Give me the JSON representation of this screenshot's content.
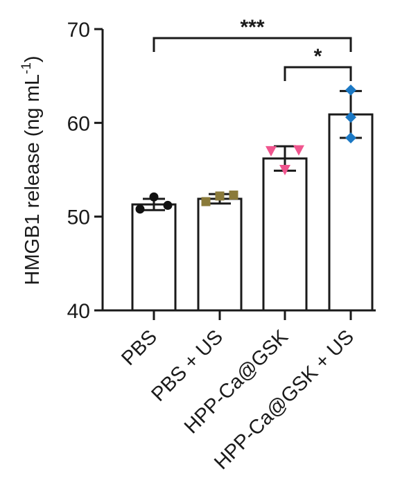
{
  "chart_data": {
    "type": "bar",
    "ylabel": "HMGB1 release (ng mL",
    "ylabel_sup": "-1",
    "ylabel_close": ")",
    "ylim": [
      40,
      70
    ],
    "yticks": [
      40,
      50,
      60,
      70
    ],
    "grid": false,
    "categories": [
      "PBS",
      "PBS + US",
      "HPP-Ca@GSK",
      "HPP-Ca@GSK + US"
    ],
    "values": [
      51.3,
      51.9,
      56.2,
      60.9
    ],
    "errors": [
      0.6,
      0.5,
      1.3,
      2.5
    ],
    "points": [
      {
        "values": [
          50.8,
          52.1,
          51.2
        ],
        "marker": "circle",
        "color": "#111111"
      },
      {
        "values": [
          51.6,
          52.2,
          52.3
        ],
        "marker": "square",
        "color": "#8a7a3a"
      },
      {
        "values": [
          57.0,
          55.0,
          57.1
        ],
        "marker": "triangle-down",
        "color": "#f0558e"
      },
      {
        "values": [
          58.4,
          60.6,
          63.5
        ],
        "marker": "diamond",
        "color": "#1b78c4"
      }
    ],
    "significance": [
      {
        "from": 0,
        "to": 3,
        "label": "***"
      },
      {
        "from": 2,
        "to": 3,
        "label": "*"
      }
    ]
  }
}
